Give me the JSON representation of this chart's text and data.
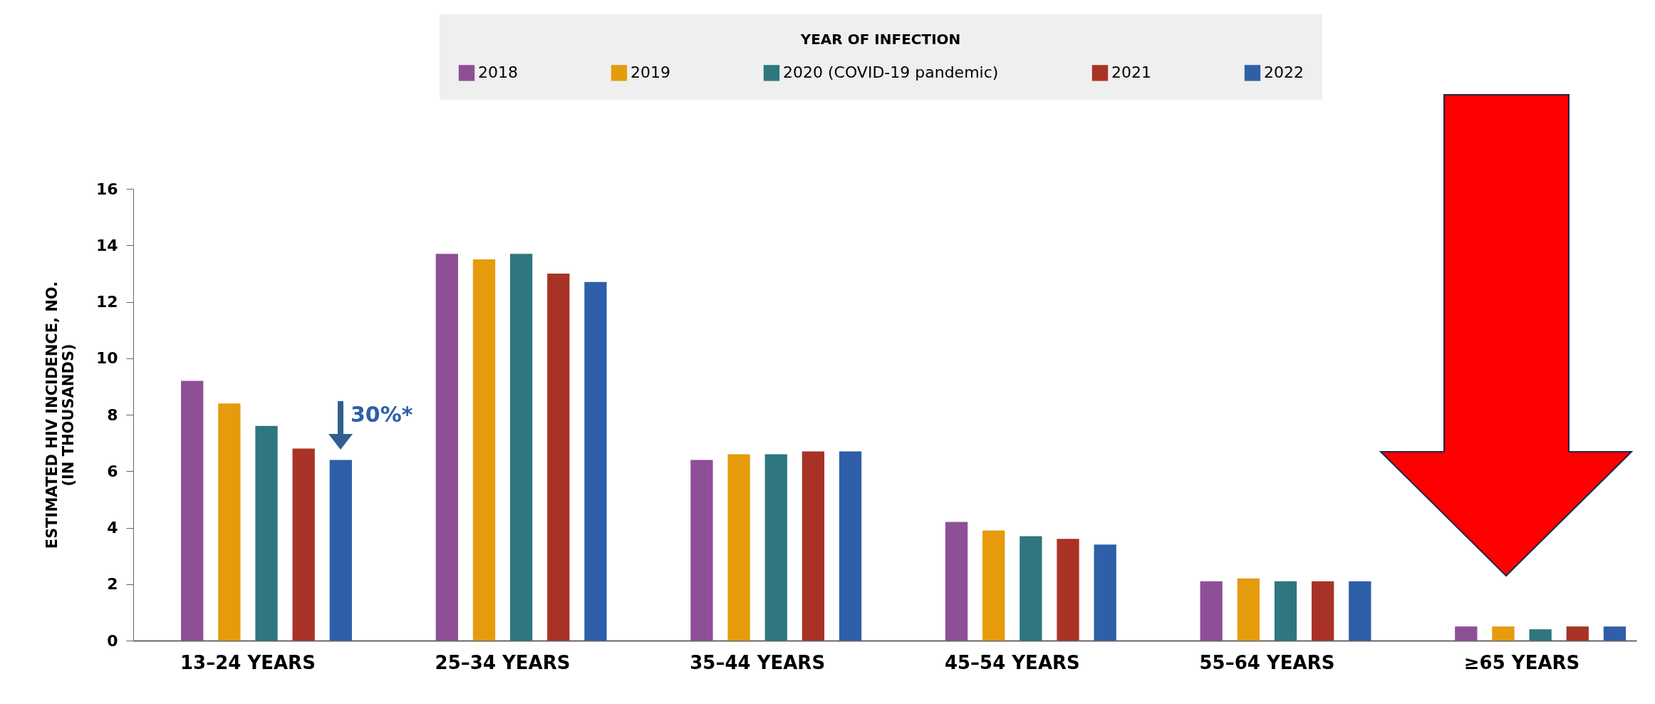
{
  "chart_data": {
    "type": "bar",
    "legend_title": "YEAR OF INFECTION",
    "ylabel": "ESTIMATED HIV INCIDENCE, NO.\n(IN THOUSANDS)",
    "categories": [
      "13–24 YEARS",
      "25–34 YEARS",
      "35–44 YEARS",
      "45–54 YEARS",
      "55–64 YEARS",
      "≥65 YEARS"
    ],
    "series": [
      {
        "name": "2018",
        "color": "#8e4f97",
        "values": [
          9.2,
          13.7,
          6.4,
          4.2,
          2.1,
          0.5
        ]
      },
      {
        "name": "2019",
        "color": "#e59b0c",
        "values": [
          8.4,
          13.5,
          6.6,
          3.9,
          2.2,
          0.5
        ]
      },
      {
        "name": "2020 (COVID-19 pandemic)",
        "color": "#2e7680",
        "values": [
          7.6,
          13.7,
          6.6,
          3.7,
          2.1,
          0.4
        ]
      },
      {
        "name": "2021",
        "color": "#a93226",
        "values": [
          6.8,
          13.0,
          6.7,
          3.6,
          2.1,
          0.5
        ]
      },
      {
        "name": "2022",
        "color": "#2e5fa8",
        "values": [
          6.4,
          12.7,
          6.7,
          3.4,
          2.1,
          0.5
        ]
      }
    ],
    "ylim": [
      0,
      16
    ],
    "yticks": [
      0,
      2,
      4,
      6,
      8,
      10,
      12,
      14,
      16
    ],
    "grid": false,
    "legend": "top",
    "annotations": [
      "30%*"
    ]
  }
}
